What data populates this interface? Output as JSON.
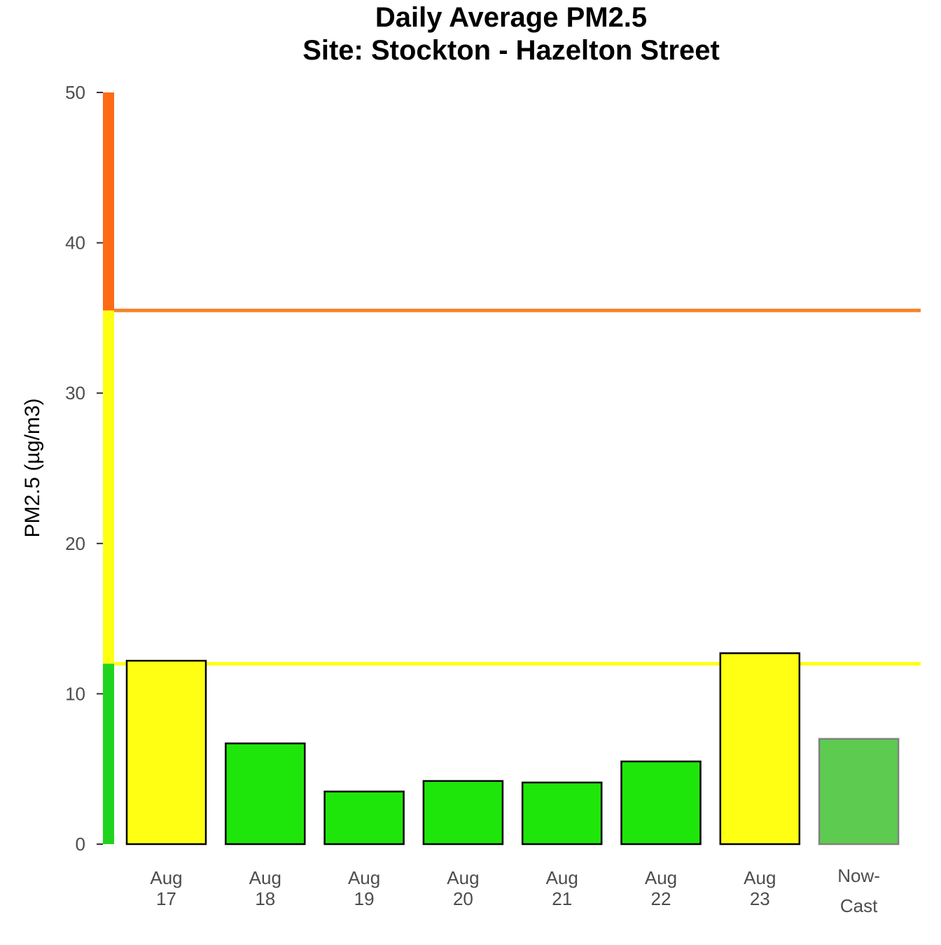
{
  "chart_data": {
    "type": "bar",
    "title": [
      "Daily Average PM2.5",
      "Site: Stockton - Hazelton Street"
    ],
    "xlabel": "",
    "ylabel": "PM2.5 (µg/m3)",
    "ylim": [
      0,
      50
    ],
    "yticks": [
      0,
      10,
      20,
      30,
      40,
      50
    ],
    "grid": false,
    "legend": "none",
    "categories": [
      [
        "Aug",
        "17"
      ],
      [
        "Aug",
        "18"
      ],
      [
        "Aug",
        "19"
      ],
      [
        "Aug",
        "20"
      ],
      [
        "Aug",
        "21"
      ],
      [
        "Aug",
        "22"
      ],
      [
        "Aug",
        "23"
      ],
      [
        "Now-",
        "Cast"
      ]
    ],
    "values": [
      12.2,
      6.7,
      3.5,
      4.2,
      4.1,
      5.5,
      12.7,
      7.0
    ],
    "bar_colors": [
      "#ffff14",
      "#1fe60a",
      "#1fe60a",
      "#1fe60a",
      "#1fe60a",
      "#1fe60a",
      "#ffff14",
      "#5ccb50"
    ],
    "bar_outline": [
      "#000000",
      "#000000",
      "#000000",
      "#000000",
      "#000000",
      "#000000",
      "#000000",
      "#808080"
    ],
    "threshold_lines": [
      {
        "value": 12,
        "color": "#ffff14"
      },
      {
        "value": 35.5,
        "color": "#f5832a"
      }
    ],
    "aqi_band": [
      {
        "from": 0,
        "to": 12,
        "color": "#1fd41f"
      },
      {
        "from": 12,
        "to": 35.5,
        "color": "#ffff14"
      },
      {
        "from": 35.5,
        "to": 50,
        "color": "#ff6a14"
      }
    ]
  }
}
